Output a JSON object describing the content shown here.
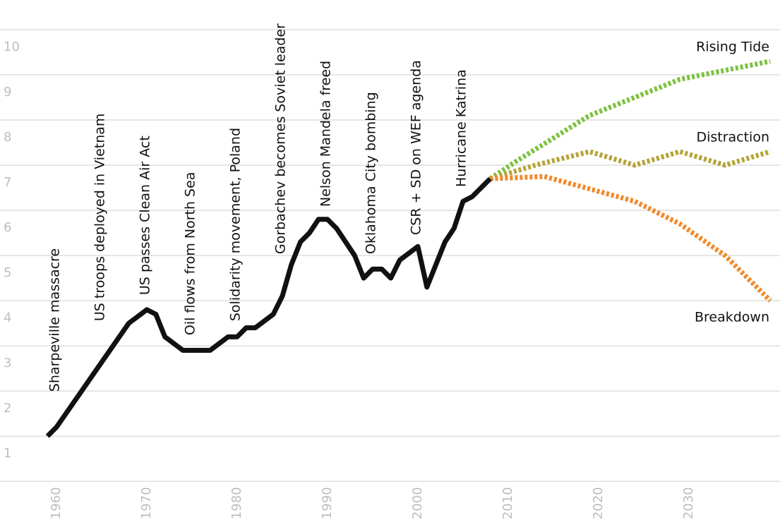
{
  "chart_data": {
    "type": "line",
    "xlim": [
      1955,
      2040
    ],
    "ylim": [
      0,
      10
    ],
    "xticks": [
      1960,
      1970,
      1980,
      1990,
      2000,
      2010,
      2020,
      2030
    ],
    "yticks": [
      1,
      2,
      3,
      4,
      5,
      6,
      7,
      8,
      9,
      10
    ],
    "grid": true,
    "history": {
      "color": "#111111",
      "x": [
        1959,
        1960,
        1968,
        1970,
        1971,
        1972,
        1974,
        1977,
        1979,
        1980,
        1981,
        1982,
        1984,
        1985,
        1986,
        1987,
        1988,
        1989,
        1990,
        1991,
        1993,
        1994,
        1995,
        1996,
        1997,
        1998,
        2000,
        2001,
        2002,
        2003,
        2004,
        2005,
        2006,
        2008
      ],
      "values": [
        1.0,
        1.2,
        3.5,
        3.8,
        3.7,
        3.2,
        2.9,
        2.9,
        3.2,
        3.2,
        3.4,
        3.4,
        3.7,
        4.1,
        4.8,
        5.3,
        5.5,
        5.8,
        5.8,
        5.6,
        5.0,
        4.5,
        4.7,
        4.7,
        4.5,
        4.9,
        5.2,
        4.3,
        4.8,
        5.3,
        5.6,
        6.2,
        6.3,
        6.7
      ]
    },
    "series": [
      {
        "name": "Rising Tide",
        "color": "#7dc242",
        "x": [
          2008,
          2011,
          2019,
          2024,
          2029,
          2039
        ],
        "values": [
          6.7,
          7.1,
          8.1,
          8.5,
          8.9,
          9.3
        ]
      },
      {
        "name": "Distraction",
        "color": "#b5a53a",
        "x": [
          2008,
          2013,
          2019,
          2024,
          2029,
          2034,
          2039
        ],
        "values": [
          6.7,
          7.0,
          7.3,
          7.0,
          7.3,
          7.0,
          7.3
        ]
      },
      {
        "name": "Breakdown",
        "color": "#f08a2c",
        "x": [
          2008,
          2014,
          2024,
          2029,
          2034,
          2039
        ],
        "values": [
          6.7,
          6.75,
          6.2,
          5.7,
          5.0,
          4.0
        ]
      }
    ],
    "annotations": [
      {
        "text": "Sharpeville massacre",
        "x": 1960
      },
      {
        "text": "US troops deployed in Vietnam",
        "x": 1965
      },
      {
        "text": "US passes Clean Air Act",
        "x": 1970
      },
      {
        "text": "Oil flows from North Sea",
        "x": 1975
      },
      {
        "text": "Solidarity movement, Poland",
        "x": 1980
      },
      {
        "text": "Gorbachev becomes Soviet leader",
        "x": 1985
      },
      {
        "text": "Nelson Mandela freed",
        "x": 1990
      },
      {
        "text": "Oklahoma City bombing",
        "x": 1995
      },
      {
        "text": "CSR + SD on WEF agenda",
        "x": 2000
      },
      {
        "text": "Hurricane Katrina",
        "x": 2005
      }
    ]
  }
}
